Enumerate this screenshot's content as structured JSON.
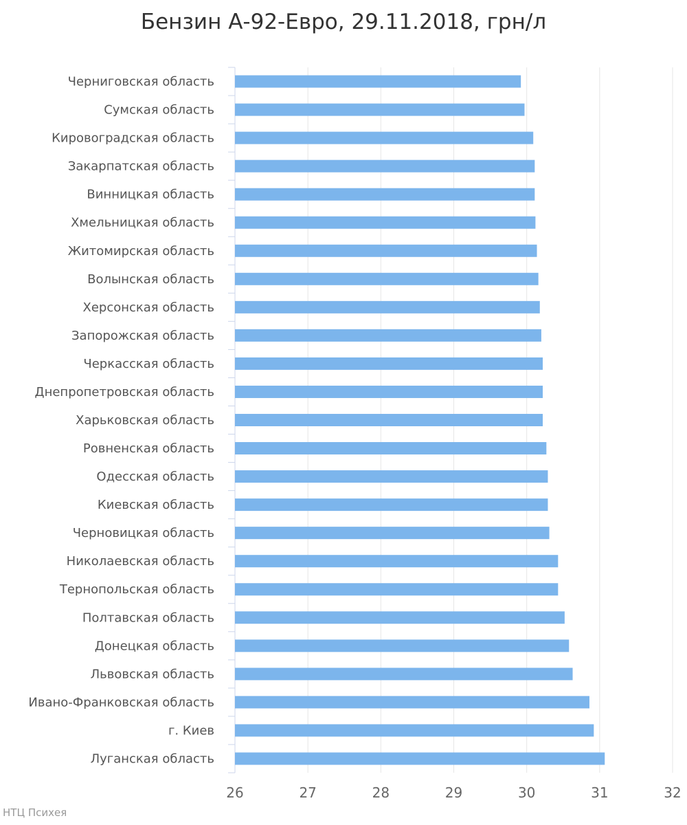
{
  "chart_data": {
    "type": "bar",
    "orientation": "horizontal",
    "title": "Бензин А-92-Евро, 29.11.2018, грн/л",
    "xlabel": "",
    "ylabel": "",
    "xlim": [
      26,
      32
    ],
    "ticks": [
      "26",
      "27",
      "28",
      "29",
      "30",
      "31",
      "32"
    ],
    "grid": true,
    "bar_color": "#7cb5ec",
    "categories": [
      "Черниговская область",
      "Сумская область",
      "Кировоградская область",
      "Закарпатская область",
      "Винницкая область",
      "Хмельницкая область",
      "Житомирская область",
      "Волынская область",
      "Херсонская область",
      "Запорожская область",
      "Черкасская область",
      "Днепропетровская область",
      "Харьковская область",
      "Ровненская область",
      "Одесская область",
      "Киевская область",
      "Черновицкая область",
      "Николаевская область",
      "Тернопольская область",
      "Полтавская область",
      "Донецкая область",
      "Львовская область",
      "Ивано-Франковская область",
      "г. Киев",
      "Луганская область"
    ],
    "values": [
      29.92,
      29.97,
      30.09,
      30.11,
      30.11,
      30.12,
      30.14,
      30.16,
      30.18,
      30.2,
      30.22,
      30.22,
      30.22,
      30.27,
      30.29,
      30.29,
      30.31,
      30.43,
      30.43,
      30.52,
      30.58,
      30.63,
      30.86,
      30.92,
      31.07
    ]
  },
  "credit": "НТЦ Психея"
}
